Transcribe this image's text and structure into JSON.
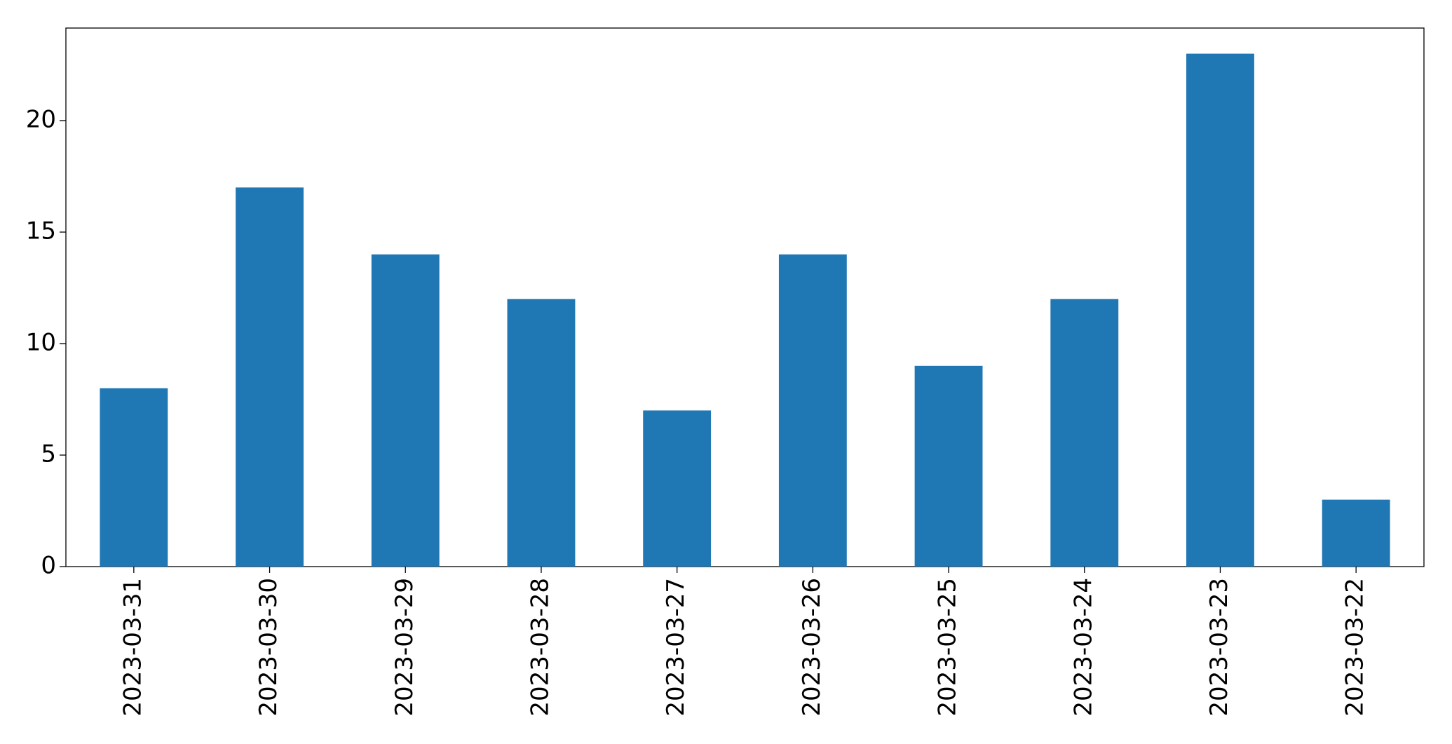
{
  "chart_data": {
    "type": "bar",
    "categories": [
      "2023-03-31",
      "2023-03-30",
      "2023-03-29",
      "2023-03-28",
      "2023-03-27",
      "2023-03-26",
      "2023-03-25",
      "2023-03-24",
      "2023-03-23",
      "2023-03-22"
    ],
    "values": [
      8,
      17,
      14,
      12,
      7,
      14,
      9,
      12,
      23,
      3
    ],
    "color": "#1f77b4",
    "ylim": [
      0,
      24.15
    ],
    "yticks": [
      0,
      5,
      10,
      15,
      20
    ],
    "grid": false
  }
}
